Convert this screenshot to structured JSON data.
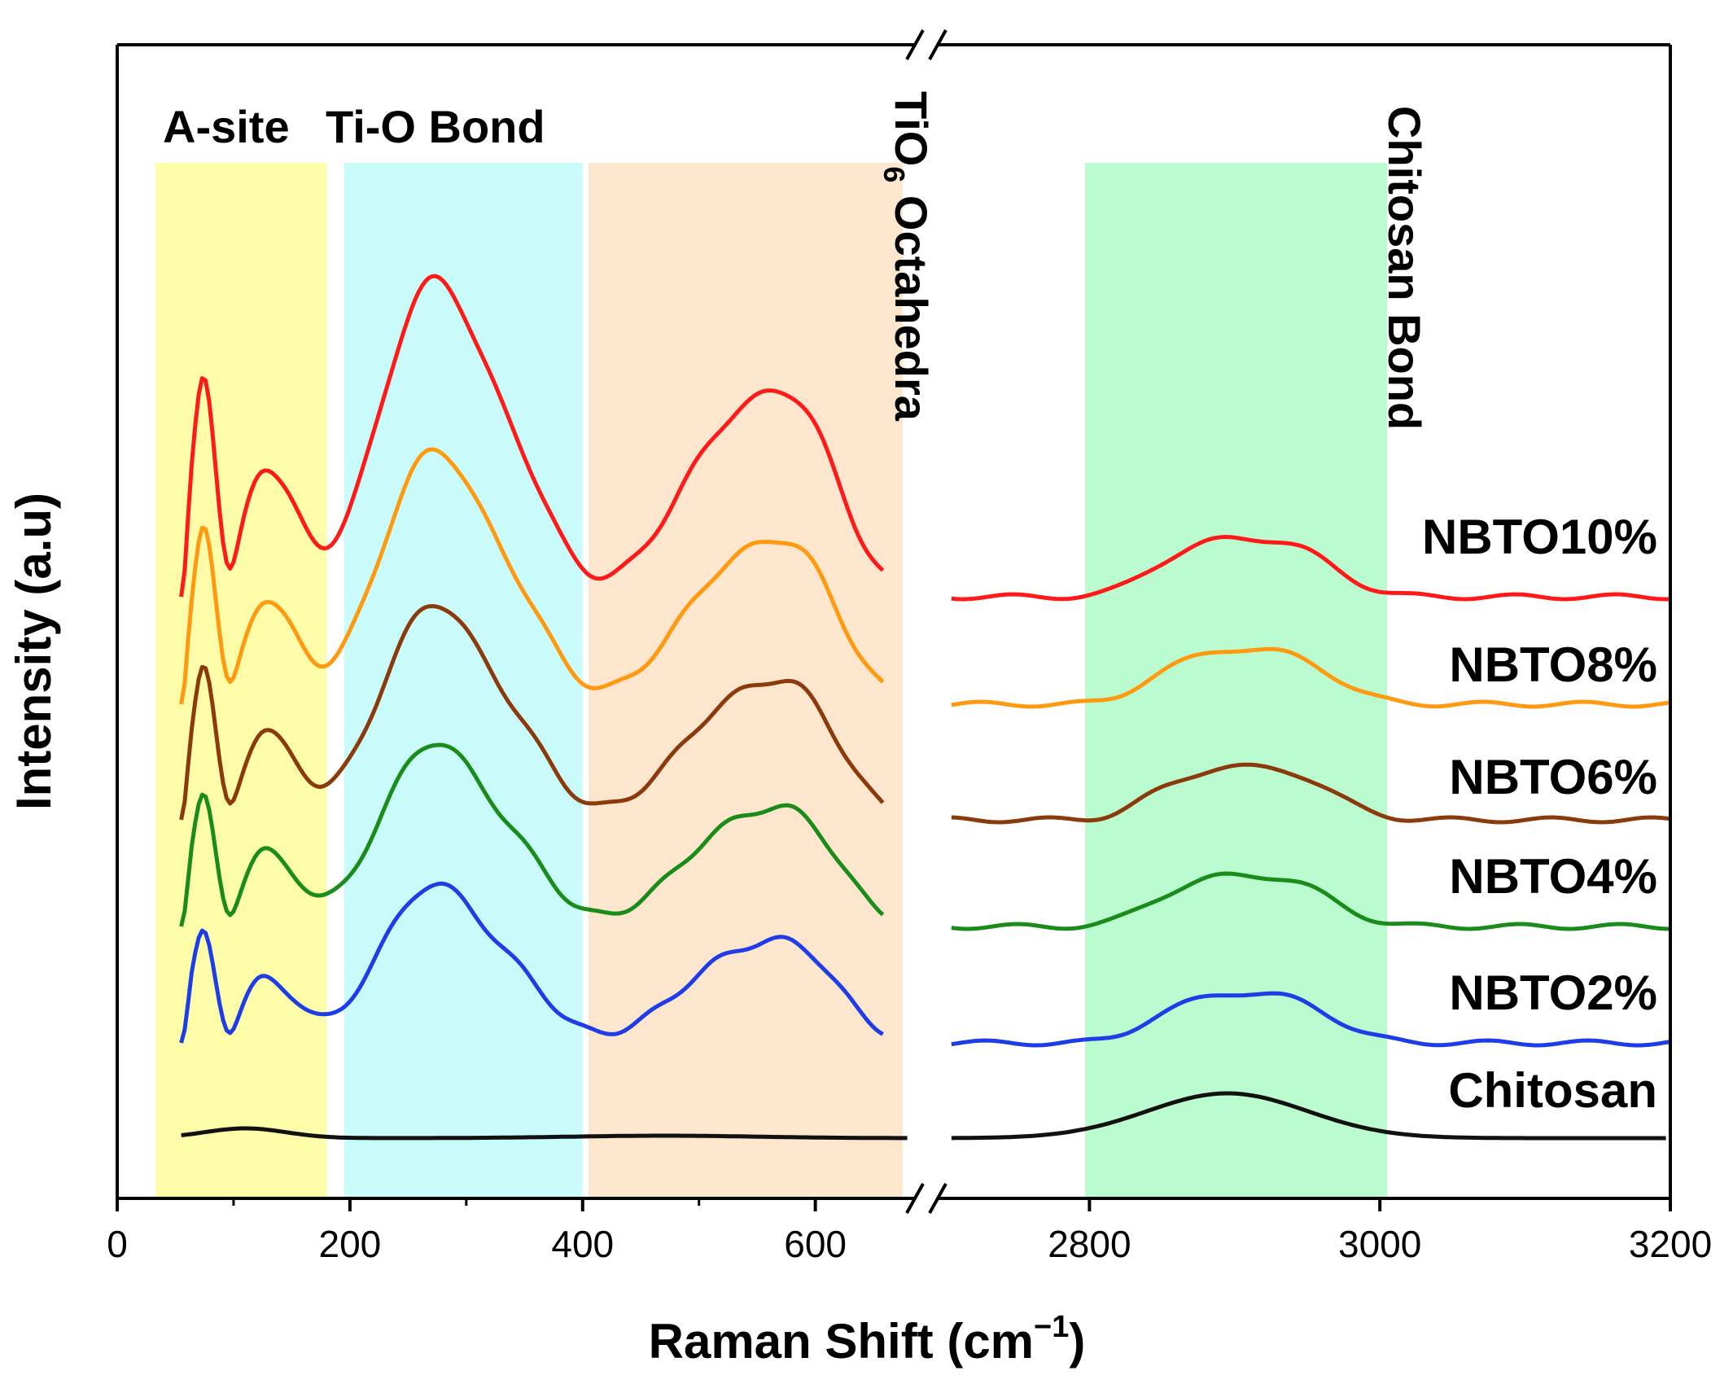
{
  "chart_data": {
    "type": "line",
    "xlabel": "Raman Shift (cm",
    "xlabel_sup": "−1",
    "xlabel_close": ")",
    "ylabel": "Intensity (a.u)",
    "broken_axis": true,
    "x_segments": [
      {
        "range": [
          0,
          680
        ],
        "ticks": [
          "0",
          "200",
          "400",
          "600"
        ],
        "tick_values": [
          0,
          200,
          400,
          600
        ]
      },
      {
        "range": [
          2700,
          3200
        ],
        "ticks": [
          "2800",
          "3000",
          "3200"
        ],
        "tick_values": [
          2800,
          3000,
          3200
        ]
      }
    ],
    "y_ticks_shown": false,
    "regions": [
      {
        "label": "A-site",
        "x": [
          33,
          180
        ],
        "color": "#fdfca0"
      },
      {
        "label": "Ti-O Bond",
        "x": [
          195,
          400
        ],
        "color": "#c4fbfb"
      },
      {
        "label": "TiO",
        "label_sub": "6",
        "label_rest": " Octahedra",
        "x": [
          405,
          675
        ],
        "color": "#fde3c9"
      },
      {
        "label": "Chitosan Bond",
        "x": [
          2797,
          3005
        ],
        "color": "#b4fbcb"
      }
    ],
    "series": [
      {
        "name": "NBTO10%",
        "color": "#ff1a1a",
        "offset": 5,
        "amp": 1.0
      },
      {
        "name": "NBTO8%",
        "color": "#ff9a10",
        "offset": 4,
        "amp": 0.8
      },
      {
        "name": "NBTO6%",
        "color": "#8b3a0c",
        "offset": 3,
        "amp": 0.68
      },
      {
        "name": "NBTO4%",
        "color": "#1a8c1a",
        "offset": 2,
        "amp": 0.58
      },
      {
        "name": "NBTO2%",
        "color": "#1f3de6",
        "offset": 1,
        "amp": 0.5
      },
      {
        "name": "Chitosan",
        "color": "#111111",
        "offset": 0,
        "amp": 0.0
      }
    ],
    "grid": false,
    "legend": "inline-right"
  }
}
